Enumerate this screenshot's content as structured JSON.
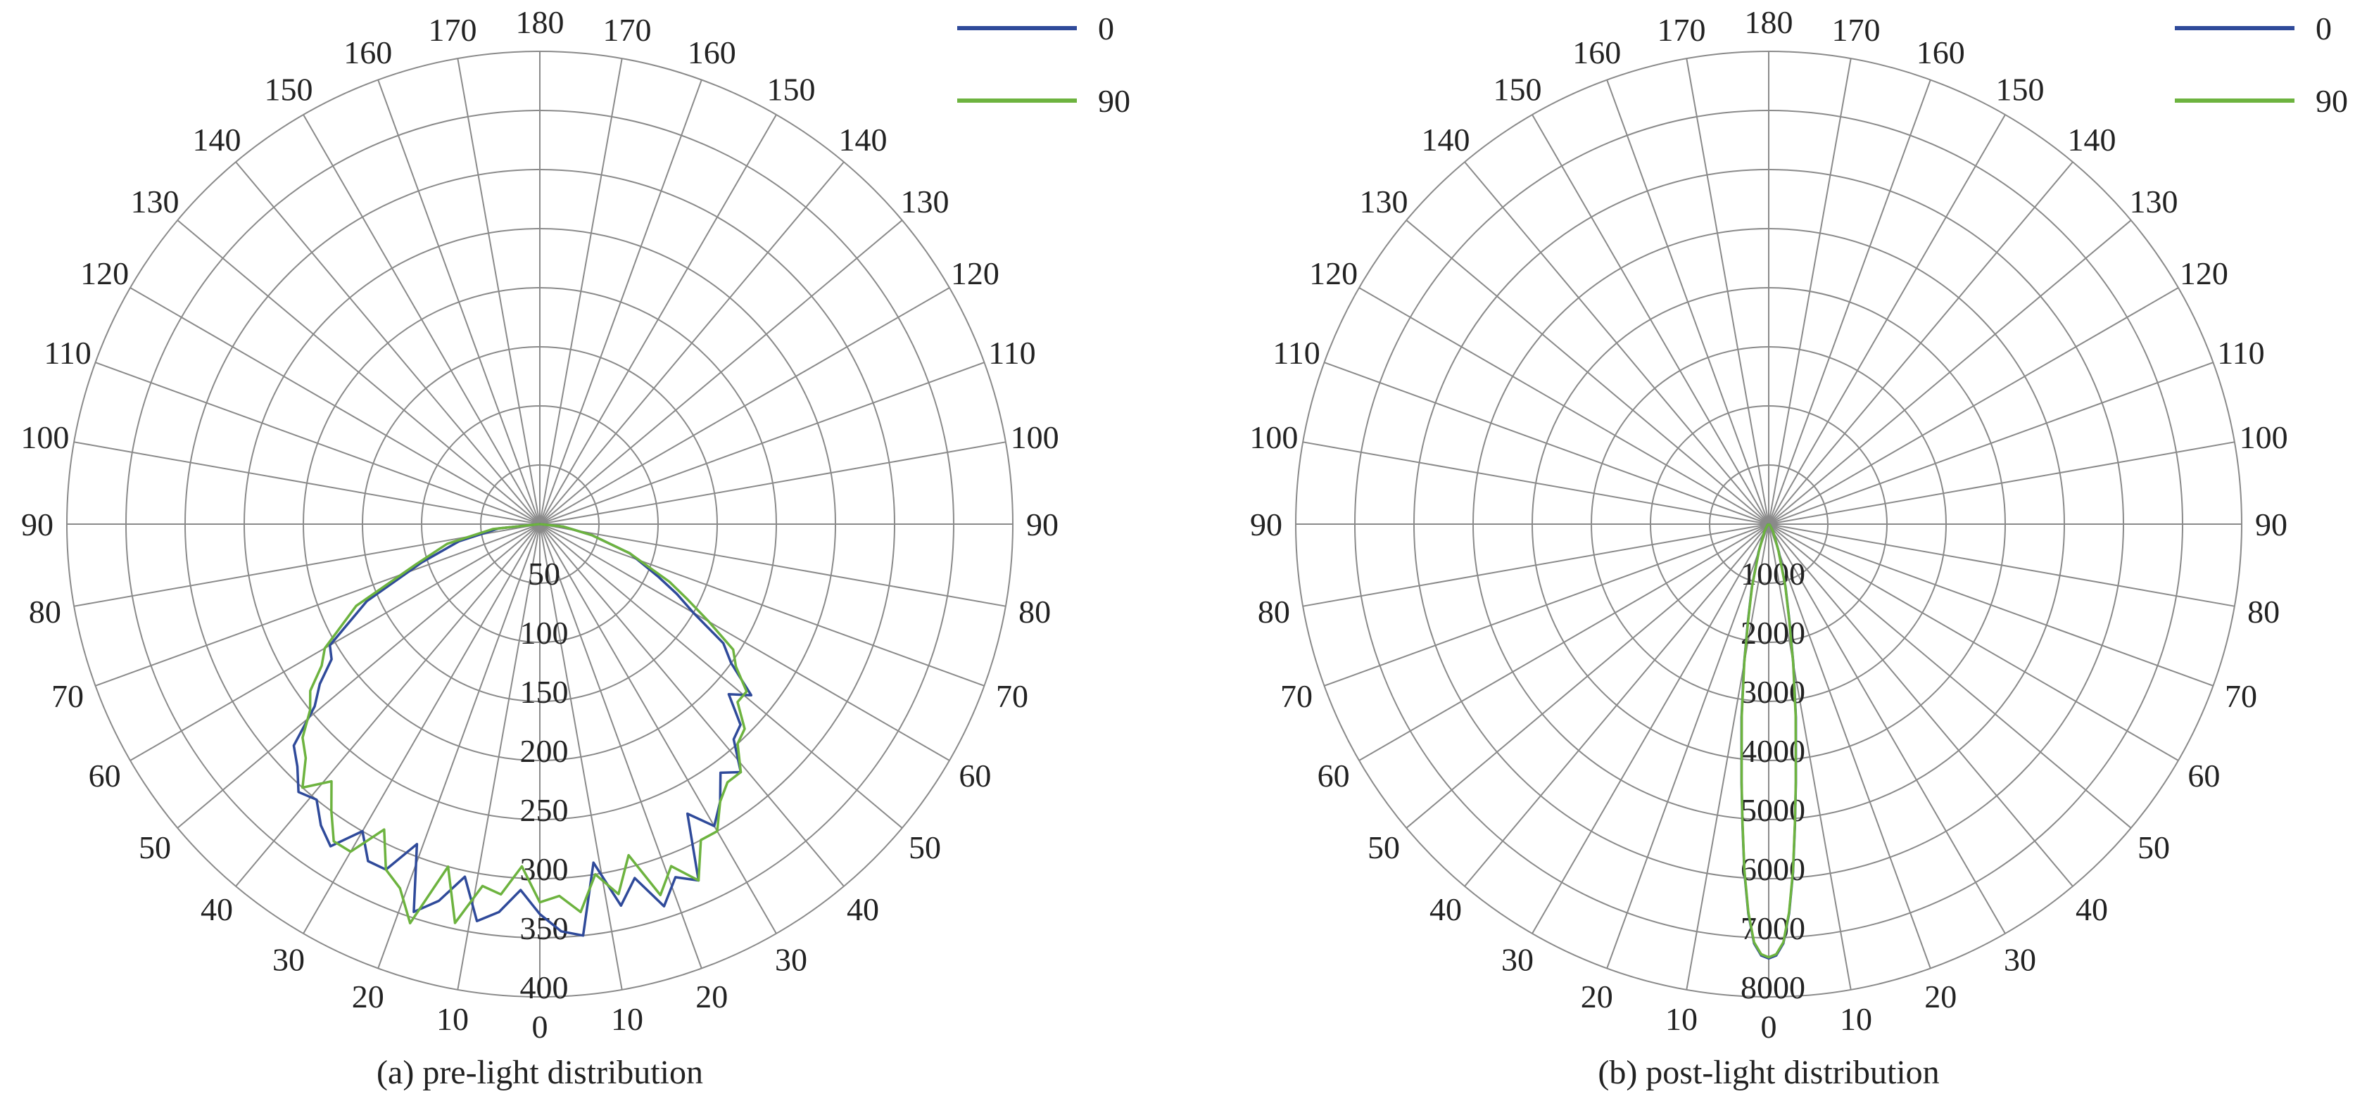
{
  "chart_data": [
    {
      "type": "polar",
      "caption": "(a) pre-light distribution",
      "angle_labels": [
        "0",
        "10",
        "20",
        "30",
        "40",
        "50",
        "60",
        "70",
        "80",
        "90",
        "100",
        "110",
        "120",
        "130",
        "140",
        "150",
        "160",
        "170",
        "180",
        "170",
        "160",
        "150",
        "140",
        "130",
        "120",
        "110",
        "100",
        "90",
        "80",
        "70",
        "60",
        "50",
        "40",
        "30",
        "20",
        "10"
      ],
      "radial_labels": [
        "50",
        "100",
        "150",
        "200",
        "250",
        "300",
        "350",
        "400"
      ],
      "r_max": 400,
      "grid": true,
      "legend_position": "top-right",
      "series": [
        {
          "name": "0",
          "color": "#2f4a9a",
          "angle_deg": [
            -90,
            -84,
            -78,
            -72,
            -66,
            -60,
            -57,
            -54,
            -51,
            -48,
            -45,
            -42,
            -39,
            -36,
            -33,
            -30,
            -27,
            -24,
            -21,
            -18,
            -15,
            -12,
            -9,
            -6,
            -3,
            0,
            3,
            6,
            9,
            12,
            15,
            18,
            21,
            24,
            27,
            30,
            33,
            36,
            39,
            42,
            45,
            48,
            51,
            54,
            57,
            60,
            63,
            66,
            72,
            78,
            84,
            90
          ],
          "r": [
            0,
            35,
            70,
            105,
            160,
            205,
            210,
            230,
            245,
            280,
            290,
            305,
            300,
            315,
            325,
            300,
            320,
            320,
            290,
            345,
            330,
            305,
            340,
            330,
            310,
            330,
            345,
            350,
            290,
            330,
            310,
            340,
            320,
            330,
            275,
            295,
            280,
            260,
            270,
            245,
            240,
            215,
            230,
            200,
            185,
            150,
            130,
            110,
            80,
            45,
            20,
            0
          ]
        },
        {
          "name": "90",
          "color": "#6db33f",
          "angle_deg": [
            -90,
            -84,
            -78,
            -72,
            -66,
            -60,
            -57,
            -54,
            -51,
            -48,
            -45,
            -42,
            -39,
            -36,
            -33,
            -30,
            -27,
            -24,
            -21,
            -18,
            -15,
            -12,
            -9,
            -6,
            -3,
            0,
            3,
            6,
            9,
            12,
            15,
            18,
            21,
            24,
            27,
            30,
            33,
            36,
            39,
            42,
            45,
            48,
            51,
            54,
            57,
            60,
            63,
            66,
            72,
            78,
            84,
            90
          ],
          "r": [
            0,
            40,
            80,
            110,
            170,
            210,
            220,
            240,
            250,
            270,
            280,
            300,
            280,
            300,
            320,
            320,
            290,
            320,
            330,
            355,
            300,
            345,
            310,
            315,
            290,
            320,
            315,
            330,
            300,
            320,
            290,
            330,
            310,
            330,
            300,
            300,
            280,
            270,
            270,
            250,
            245,
            225,
            225,
            205,
            195,
            165,
            140,
            120,
            80,
            45,
            20,
            0
          ]
        }
      ]
    },
    {
      "type": "polar",
      "caption": "(b) post-light distribution",
      "angle_labels": [
        "0",
        "10",
        "20",
        "30",
        "40",
        "50",
        "60",
        "70",
        "80",
        "90",
        "100",
        "110",
        "120",
        "130",
        "140",
        "150",
        "160",
        "170",
        "180",
        "170",
        "160",
        "150",
        "140",
        "130",
        "120",
        "110",
        "100",
        "90",
        "80",
        "70",
        "60",
        "50",
        "40",
        "30",
        "20",
        "10"
      ],
      "radial_labels": [
        "1000",
        "2000",
        "3000",
        "4000",
        "5000",
        "6000",
        "7000",
        "8000"
      ],
      "r_max": 8000,
      "grid": true,
      "legend_position": "top-right",
      "series": [
        {
          "name": "0",
          "color": "#2f4a9a",
          "angle_deg": [
            -90,
            -60,
            -30,
            -20,
            -15,
            -12,
            -10,
            -8,
            -6,
            -5,
            -4,
            -3,
            -2,
            -1,
            0,
            1,
            2,
            3,
            4,
            5,
            6,
            8,
            10,
            12,
            15,
            20,
            30,
            60,
            90
          ],
          "r": [
            0,
            20,
            150,
            500,
            1100,
            1700,
            2400,
            3300,
            4400,
            5100,
            5900,
            6600,
            7100,
            7300,
            7350,
            7300,
            7100,
            6600,
            5900,
            5100,
            4400,
            3300,
            2400,
            1700,
            1100,
            500,
            150,
            20,
            0
          ]
        },
        {
          "name": "90",
          "color": "#6db33f",
          "angle_deg": [
            -90,
            -60,
            -30,
            -20,
            -15,
            -12,
            -10,
            -8,
            -6,
            -5,
            -4,
            -3,
            -2,
            -1,
            0,
            1,
            2,
            3,
            4,
            5,
            6,
            8,
            10,
            12,
            15,
            20,
            30,
            60,
            90
          ],
          "r": [
            0,
            20,
            150,
            480,
            1080,
            1680,
            2380,
            3280,
            4380,
            5080,
            5880,
            6580,
            7080,
            7280,
            7330,
            7280,
            7080,
            6580,
            5880,
            5080,
            4380,
            3280,
            2380,
            1680,
            1080,
            480,
            150,
            20,
            0
          ]
        }
      ]
    }
  ]
}
